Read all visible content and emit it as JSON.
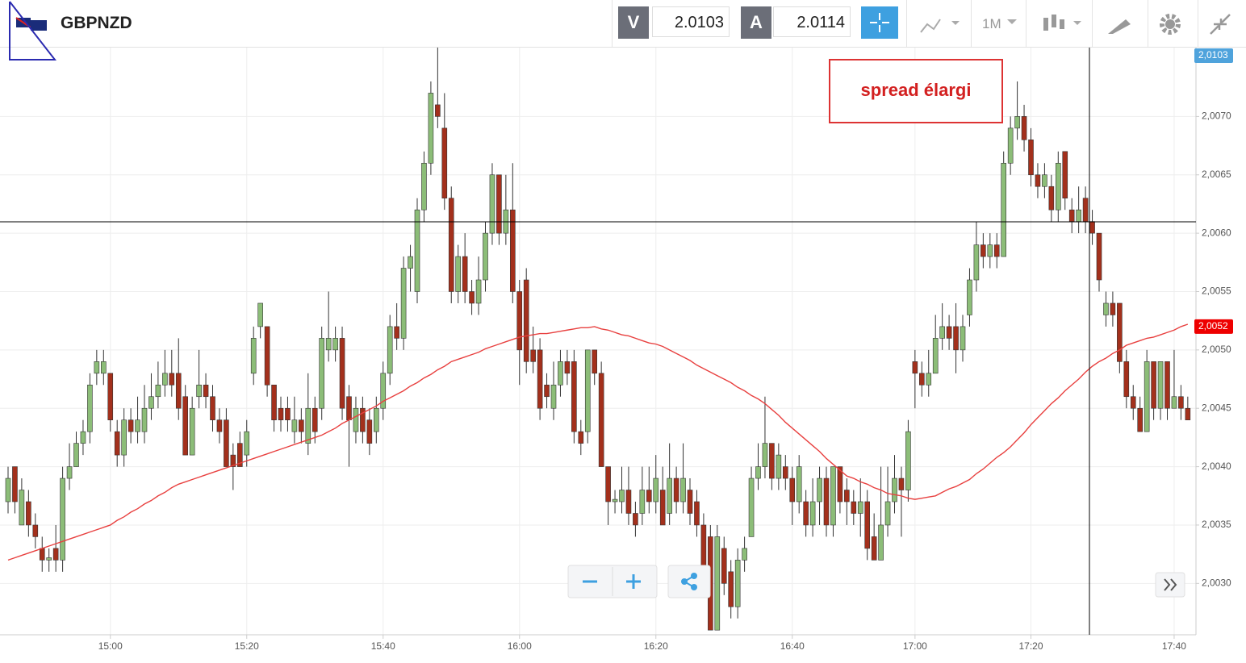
{
  "header": {
    "symbol": "GBPNZD",
    "sell": {
      "label": "V",
      "price": 2.0103
    },
    "buy": {
      "label": "A",
      "price": 2.0114
    },
    "timeframe": "1M"
  },
  "chart_data": {
    "type": "candlestick",
    "annotation": "spread élargi",
    "categories": [
      null,
      null,
      null,
      null,
      null,
      null,
      null,
      null,
      null,
      null,
      null,
      null,
      null,
      null,
      null,
      "15:00",
      null,
      null,
      null,
      null,
      null,
      null,
      null,
      null,
      null,
      null,
      null,
      null,
      null,
      null,
      null,
      null,
      null,
      null,
      null,
      "15:20",
      null,
      null,
      null,
      null,
      null,
      null,
      null,
      null,
      null,
      null,
      null,
      null,
      null,
      null,
      null,
      null,
      null,
      null,
      null,
      "15:40",
      null,
      null,
      null,
      null,
      null,
      null,
      null,
      null,
      null,
      null,
      null,
      null,
      null,
      null,
      null,
      null,
      null,
      null,
      null,
      "16:00",
      null,
      null,
      null,
      null,
      null,
      null,
      null,
      null,
      null,
      null,
      null,
      null,
      null,
      null,
      null,
      null,
      null,
      null,
      null,
      "16:20",
      null,
      null,
      null,
      null,
      null,
      null,
      null,
      null,
      null,
      null,
      null,
      null,
      null,
      null,
      null,
      null,
      null,
      null,
      null,
      "16:40",
      null,
      null,
      null,
      null,
      null,
      null,
      null,
      null,
      null,
      null,
      null,
      null,
      null,
      null,
      null,
      null,
      null,
      "17:00",
      null,
      null,
      null,
      null,
      null,
      null,
      null,
      null,
      null,
      null,
      null,
      null,
      null,
      null,
      null,
      null,
      "17:20",
      null,
      null,
      null,
      null,
      null,
      null,
      null,
      null,
      null,
      null,
      null,
      null,
      null,
      null,
      null,
      null,
      null,
      null,
      null,
      null,
      "17:40",
      null,
      null
    ],
    "open": [
      2.0037,
      2.004,
      2.0035,
      2.0037,
      2.0035,
      2.0033,
      2.0032,
      2.0033,
      2.0032,
      2.0039,
      2.004,
      2.0042,
      2.0043,
      2.0048,
      2.0048,
      2.0048,
      2.0043,
      2.0041,
      2.0044,
      2.0043,
      2.0043,
      2.0045,
      2.0046,
      2.0047,
      2.0048,
      2.0048,
      2.0046,
      2.0041,
      2.0046,
      2.0047,
      2.0046,
      2.0044,
      2.0044,
      2.0041,
      2.0042,
      2.0041,
      2.0048,
      2.0052,
      2.0052,
      2.0047,
      2.0045,
      2.0045,
      2.0043,
      2.0044,
      2.0042,
      2.0045,
      2.0045,
      2.005,
      2.005,
      2.0051,
      2.0046,
      2.0043,
      2.0045,
      2.0044,
      2.0043,
      2.0045,
      2.0048,
      2.0052,
      2.0051,
      2.0057,
      2.0055,
      2.0062,
      2.0066,
      2.0071,
      2.0069,
      2.0063,
      2.0055,
      2.0058,
      2.0055,
      2.0054,
      2.0056,
      2.006,
      2.0065,
      2.006,
      2.0062,
      2.0055,
      2.0056,
      2.005,
      2.005,
      2.0047,
      2.0045,
      2.0047,
      2.0049,
      2.0049,
      2.0043,
      2.0043,
      2.005,
      2.0048,
      2.004,
      2.0037,
      2.0037,
      2.0038,
      2.0036,
      2.0036,
      2.0038,
      2.0037,
      2.0038,
      2.0036,
      2.0039,
      2.0037,
      2.0038,
      2.0037,
      2.0035,
      2.0034,
      2.0026,
      2.0033,
      2.0031,
      2.0028,
      2.0032,
      2.0034,
      2.0039,
      2.004,
      2.0042,
      2.0039,
      2.004,
      2.0039,
      2.0037,
      2.0037,
      2.0035,
      2.0037,
      2.0039,
      2.0035,
      2.004,
      2.0038,
      2.0037,
      2.0036,
      2.0037,
      2.0034,
      2.0032,
      2.0035,
      2.0037,
      2.0039,
      2.0038,
      2.0049,
      2.0048,
      2.0047,
      2.0048,
      2.0051,
      2.0052,
      2.0052,
      2.005,
      2.0053,
      2.0056,
      2.0059,
      2.0058,
      2.0059,
      2.0058,
      2.0066,
      2.0069,
      2.007,
      2.0068,
      2.0065,
      2.0064,
      2.0064,
      2.0062,
      2.0067,
      2.0062,
      2.0061,
      2.0063,
      2.0061,
      2.006,
      2.0053,
      2.0054,
      2.0054,
      2.0049,
      2.0046,
      2.0045,
      2.0043,
      2.0049,
      2.0045,
      2.0049,
      2.0045,
      2.0046,
      2.0045
    ],
    "high": [
      2.004,
      2.004,
      2.0039,
      2.0038,
      2.0036,
      2.0034,
      2.0033,
      2.0035,
      2.004,
      2.0042,
      2.0043,
      2.0044,
      2.0048,
      2.005,
      2.005,
      2.0048,
      2.0044,
      2.0045,
      2.0045,
      2.0046,
      2.0047,
      2.0048,
      2.0049,
      2.005,
      2.005,
      2.0051,
      2.0047,
      2.0046,
      2.005,
      2.0048,
      2.0047,
      2.0045,
      2.0045,
      2.0042,
      2.0043,
      2.0044,
      2.0052,
      2.0054,
      2.0052,
      2.0047,
      2.0046,
      2.0046,
      2.0046,
      2.0045,
      2.0048,
      2.0046,
      2.0052,
      2.0055,
      2.0052,
      2.0052,
      2.0047,
      2.0046,
      2.0046,
      2.0045,
      2.0046,
      2.0049,
      2.0053,
      2.0054,
      2.0058,
      2.0059,
      2.0063,
      2.0067,
      2.0073,
      2.0076,
      2.0072,
      2.0064,
      2.0059,
      2.006,
      2.0056,
      2.0058,
      2.0061,
      2.0066,
      2.0065,
      2.0065,
      2.0066,
      2.0056,
      2.0057,
      2.0052,
      2.0051,
      2.0048,
      2.0049,
      2.005,
      2.005,
      2.005,
      2.0044,
      2.005,
      2.005,
      2.0049,
      2.004,
      2.0038,
      2.004,
      2.004,
      2.0037,
      2.004,
      2.004,
      2.0041,
      2.004,
      2.0042,
      2.004,
      2.0042,
      2.0039,
      2.0038,
      2.0036,
      2.0035,
      2.0035,
      2.0034,
      2.0032,
      2.0033,
      2.0034,
      2.004,
      2.0042,
      2.0046,
      2.0042,
      2.0042,
      2.0041,
      2.004,
      2.0041,
      2.0038,
      2.0039,
      2.004,
      2.004,
      2.004,
      2.004,
      2.0039,
      2.0038,
      2.0039,
      2.0038,
      2.0036,
      2.004,
      2.004,
      2.0041,
      2.004,
      2.0044,
      2.005,
      2.0049,
      2.005,
      2.0053,
      2.0054,
      2.0053,
      2.0054,
      2.0053,
      2.0057,
      2.0061,
      2.006,
      2.006,
      2.006,
      2.0067,
      2.007,
      2.0073,
      2.0071,
      2.0069,
      2.0066,
      2.0066,
      2.0065,
      2.0067,
      2.0067,
      2.0063,
      2.0064,
      2.0064,
      2.0062,
      2.006,
      2.0055,
      2.0055,
      2.0054,
      2.005,
      2.0047,
      2.0046,
      2.005,
      2.0049,
      2.0049,
      2.0049,
      2.005,
      2.0047,
      2.0046
    ],
    "low": [
      2.0036,
      2.0036,
      2.0035,
      2.0034,
      2.0033,
      2.0031,
      2.0031,
      2.0031,
      2.0031,
      2.0038,
      2.004,
      2.0041,
      2.0042,
      2.0047,
      2.0047,
      2.0043,
      2.004,
      2.004,
      2.0042,
      2.0042,
      2.0042,
      2.0044,
      2.0045,
      2.0046,
      2.0046,
      2.0044,
      2.0041,
      2.0041,
      2.0045,
      2.0045,
      2.0043,
      2.0042,
      2.004,
      2.0038,
      2.004,
      2.004,
      2.0047,
      2.0051,
      2.0046,
      2.0043,
      2.0043,
      2.0043,
      2.0042,
      2.0042,
      2.0041,
      2.0042,
      2.0044,
      2.0049,
      2.0049,
      2.0044,
      2.004,
      2.0042,
      2.0042,
      2.0041,
      2.0042,
      2.0044,
      2.0047,
      2.005,
      2.005,
      2.0055,
      2.0054,
      2.0061,
      2.0065,
      2.0069,
      2.0062,
      2.0054,
      2.0054,
      2.0054,
      2.0053,
      2.0053,
      2.0055,
      2.0059,
      2.0059,
      2.0059,
      2.0054,
      2.0047,
      2.0048,
      2.0048,
      2.0044,
      2.0045,
      2.0044,
      2.0046,
      2.0047,
      2.0042,
      2.0041,
      2.0042,
      2.0047,
      2.004,
      2.0035,
      2.0036,
      2.0036,
      2.0035,
      2.0034,
      2.0035,
      2.0036,
      2.0036,
      2.0035,
      2.0035,
      2.0036,
      2.0036,
      2.0035,
      2.0034,
      2.0029,
      2.0026,
      2.0026,
      2.0029,
      2.0027,
      2.0027,
      2.0031,
      2.0034,
      2.0038,
      2.0039,
      2.0038,
      2.0038,
      2.0038,
      2.0035,
      2.0036,
      2.0034,
      2.0034,
      2.0035,
      2.0034,
      2.0034,
      2.0036,
      2.0035,
      2.0035,
      2.0034,
      2.0032,
      2.0032,
      2.0032,
      2.0034,
      2.0036,
      2.0034,
      2.0037,
      2.0045,
      2.0046,
      2.0046,
      2.0048,
      2.005,
      2.005,
      2.0048,
      2.0049,
      2.0052,
      2.0055,
      2.0057,
      2.0057,
      2.0057,
      2.0058,
      2.0065,
      2.0068,
      2.0067,
      2.0064,
      2.0063,
      2.0063,
      2.0061,
      2.0061,
      2.0062,
      2.006,
      2.006,
      2.006,
      2.0059,
      2.0055,
      2.0052,
      2.0052,
      2.0048,
      2.0045,
      2.0044,
      2.0043,
      2.0043,
      2.0044,
      2.0044,
      2.0044,
      2.0045,
      2.0044,
      2.0044
    ],
    "close": [
      2.0039,
      2.0037,
      2.0038,
      2.0035,
      2.0034,
      2.0032,
      2.00322,
      2.0032,
      2.0039,
      2.004,
      2.0042,
      2.0043,
      2.0047,
      2.0049,
      2.0049,
      2.0044,
      2.0041,
      2.0044,
      2.0043,
      2.0044,
      2.0045,
      2.0046,
      2.0047,
      2.0048,
      2.0047,
      2.0045,
      2.0041,
      2.0045,
      2.0047,
      2.0046,
      2.0044,
      2.0043,
      2.004,
      2.004,
      2.004,
      2.0043,
      2.0051,
      2.0054,
      2.0047,
      2.0044,
      2.0044,
      2.0044,
      2.0044,
      2.0043,
      2.0045,
      2.0043,
      2.0051,
      2.0051,
      2.0051,
      2.0045,
      2.0044,
      2.0045,
      2.0043,
      2.0042,
      2.0045,
      2.0048,
      2.0052,
      2.0051,
      2.0057,
      2.0058,
      2.0062,
      2.0066,
      2.0072,
      2.007,
      2.0063,
      2.0055,
      2.0058,
      2.0055,
      2.0054,
      2.0056,
      2.006,
      2.0065,
      2.006,
      2.0062,
      2.0055,
      2.005,
      2.0049,
      2.0049,
      2.0045,
      2.0046,
      2.0047,
      2.0049,
      2.0048,
      2.0043,
      2.0042,
      2.005,
      2.0048,
      2.004,
      2.0037,
      2.00372,
      2.0038,
      2.0036,
      2.0035,
      2.0038,
      2.0037,
      2.0039,
      2.0035,
      2.0039,
      2.0037,
      2.0039,
      2.0036,
      2.0035,
      2.0031,
      2.0026,
      2.0034,
      2.003,
      2.0028,
      2.0032,
      2.0033,
      2.0039,
      2.004,
      2.0042,
      2.0039,
      2.0041,
      2.0039,
      2.0037,
      2.004,
      2.0035,
      2.0037,
      2.0039,
      2.0035,
      2.004,
      2.0037,
      2.0037,
      2.0036,
      2.0037,
      2.0033,
      2.0032,
      2.0035,
      2.0037,
      2.0039,
      2.0038,
      2.0043,
      2.0048,
      2.0047,
      2.0048,
      2.0051,
      2.0052,
      2.0051,
      2.005,
      2.0052,
      2.0056,
      2.0059,
      2.0058,
      2.0059,
      2.0058,
      2.0066,
      2.0069,
      2.007,
      2.0068,
      2.0065,
      2.0064,
      2.0065,
      2.0062,
      2.0066,
      2.0063,
      2.0061,
      2.0062,
      2.0061,
      2.006,
      2.0056,
      2.0054,
      2.0053,
      2.0049,
      2.0046,
      2.0045,
      2.0043,
      2.0049,
      2.0045,
      2.0049,
      2.0045,
      2.0046,
      2.0045,
      2.0044
    ],
    "up_color": "#8cbd78",
    "down_color": "#a3301c",
    "overlay": {
      "type": "line",
      "color": "#e8403f",
      "values": [
        2.0032,
        2.00322,
        2.00324,
        2.00326,
        2.00328,
        2.0033,
        2.00332,
        2.00334,
        2.00336,
        2.00338,
        2.0034,
        2.00342,
        2.00344,
        2.00346,
        2.00348,
        2.0035,
        2.00354,
        2.00357,
        2.00361,
        2.00364,
        2.00368,
        2.00371,
        2.00375,
        2.00378,
        2.00382,
        2.00385,
        2.00387,
        2.00389,
        2.00391,
        2.00393,
        2.00395,
        2.00397,
        2.00399,
        2.00401,
        2.00403,
        2.00405,
        2.00407,
        2.00409,
        2.00411,
        2.00413,
        2.00415,
        2.00417,
        2.00419,
        2.00421,
        2.00423,
        2.00425,
        2.00427,
        2.0043,
        2.00433,
        2.00437,
        2.0044,
        2.00443,
        2.00446,
        2.00449,
        2.00452,
        2.00456,
        2.00459,
        2.00462,
        2.00465,
        2.00469,
        2.00472,
        2.00476,
        2.00479,
        2.00483,
        2.00486,
        2.0049,
        2.00492,
        2.00494,
        2.00496,
        2.00498,
        2.00501,
        2.00503,
        2.00505,
        2.00507,
        2.00509,
        2.00511,
        2.00512,
        2.00513,
        2.00514,
        2.00514,
        2.00515,
        2.00516,
        2.00517,
        2.00518,
        2.00519,
        2.00519,
        2.0052,
        2.00518,
        2.00517,
        2.00515,
        2.00513,
        2.00512,
        2.0051,
        2.00508,
        2.00506,
        2.00505,
        2.00503,
        2.005,
        2.00497,
        2.00494,
        2.00491,
        2.00487,
        2.00484,
        2.00481,
        2.00478,
        2.00475,
        2.00472,
        2.00468,
        2.00465,
        2.00461,
        2.00458,
        2.00454,
        2.00449,
        2.00444,
        2.00438,
        2.00433,
        2.00428,
        2.00423,
        2.00418,
        2.00413,
        2.00407,
        2.00402,
        2.00397,
        2.00392,
        2.0039,
        2.00387,
        2.00385,
        2.00382,
        2.0038,
        2.00377,
        2.00376,
        2.00375,
        2.00373,
        2.00372,
        2.00373,
        2.00374,
        2.00375,
        2.00378,
        2.00381,
        2.00383,
        2.00386,
        2.00389,
        2.00394,
        2.00398,
        2.00403,
        2.00408,
        2.00412,
        2.00417,
        2.00423,
        2.00429,
        2.00436,
        2.00442,
        2.00448,
        2.00454,
        2.00459,
        2.00465,
        2.0047,
        2.00475,
        2.00481,
        2.00486,
        2.0049,
        2.00493,
        2.00497,
        2.005,
        2.00504,
        2.00506,
        2.00508,
        2.0051,
        2.00511,
        2.00513,
        2.00515,
        2.00517,
        2.0052,
        2.00522
      ]
    },
    "ylim": [
      2.00256,
      2.00759
    ],
    "yticks": [
      {
        "value": 2.003,
        "label": "2,0030"
      },
      {
        "value": 2.0035,
        "label": "2,0035"
      },
      {
        "value": 2.004,
        "label": "2,0040"
      },
      {
        "value": 2.0045,
        "label": "2,0045"
      },
      {
        "value": 2.005,
        "label": "2,0050"
      },
      {
        "value": 2.0055,
        "label": "2,0055"
      },
      {
        "value": 2.006,
        "label": "2,0060"
      },
      {
        "value": 2.0065,
        "label": "2,0065"
      },
      {
        "value": 2.007,
        "label": "2,0070"
      }
    ],
    "grid": true,
    "price_tags": [
      {
        "value": 2.0103,
        "label": "2,0103",
        "color": "#4fa3dc"
      },
      {
        "value": 2.0052,
        "label": "2,0052",
        "color": "#ee0000"
      }
    ]
  }
}
